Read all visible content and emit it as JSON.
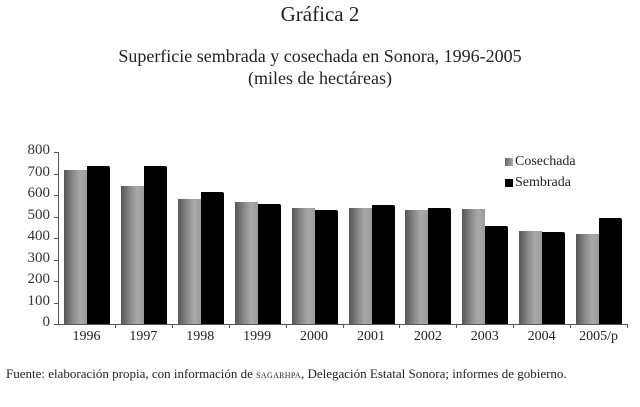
{
  "figure_label": "Gráfica 2",
  "title_line1": "Superficie sembrada y cosechada en Sonora, 1996-2005",
  "title_line2": "(miles de hectáreas)",
  "footnote": {
    "prefix": "Fuente: elaboración propia, con información de ",
    "agency": "sagarhpa",
    "suffix": ", Delegación Estatal Sonora; informes de gobierno."
  },
  "colors": {
    "cosechada": "#8a8a8a",
    "sembrada": "#000000"
  },
  "chart_data": {
    "type": "bar",
    "title": "Superficie sembrada y cosechada en Sonora, 1996-2005 (miles de hectáreas)",
    "xlabel": "",
    "ylabel": "",
    "ylim": [
      0,
      800
    ],
    "yticks": [
      0,
      100,
      200,
      300,
      400,
      500,
      600,
      700,
      800
    ],
    "grid": false,
    "legend_position": "top-right",
    "categories": [
      "1996",
      "1997",
      "1998",
      "1999",
      "2000",
      "2001",
      "2002",
      "2003",
      "2004",
      "2005/p"
    ],
    "series": [
      {
        "name": "Cosechada",
        "values": [
          716,
          642,
          581,
          567,
          540,
          540,
          530,
          535,
          433,
          419
        ]
      },
      {
        "name": "Sembrada",
        "values": [
          735,
          735,
          614,
          558,
          530,
          553,
          540,
          456,
          428,
          493
        ]
      }
    ]
  }
}
